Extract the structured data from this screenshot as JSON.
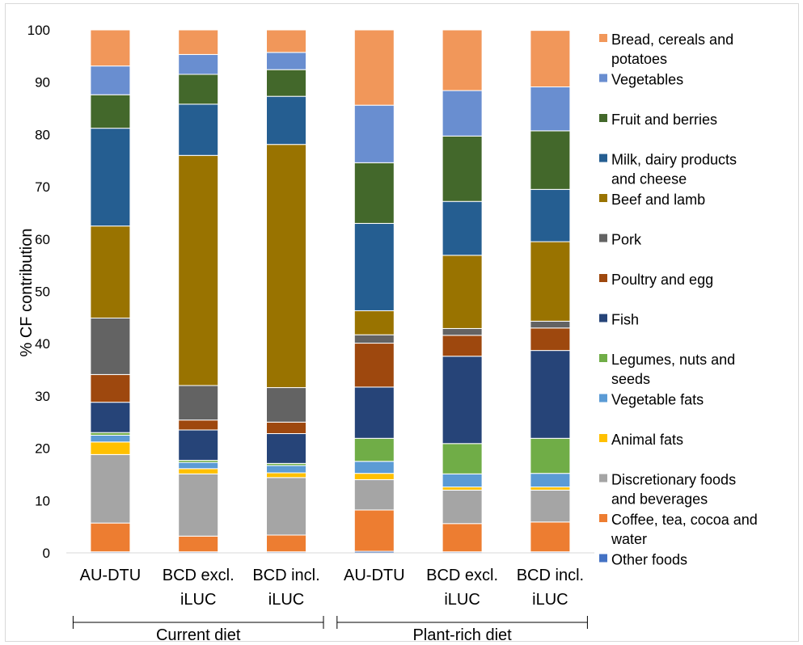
{
  "chart_data": {
    "type": "bar",
    "stacked": true,
    "ylabel": "% CF contribution",
    "ylim": [
      0,
      100
    ],
    "yticks": [
      0,
      10,
      20,
      30,
      40,
      50,
      60,
      70,
      80,
      90,
      100
    ],
    "grid": false,
    "legend_position": "right",
    "categories": [
      {
        "line1": "AU-DTU",
        "line2": ""
      },
      {
        "line1": "BCD excl.",
        "line2": "iLUC"
      },
      {
        "line1": "BCD incl.",
        "line2": "iLUC"
      },
      {
        "line1": "AU-DTU",
        "line2": ""
      },
      {
        "line1": "BCD excl.",
        "line2": "iLUC"
      },
      {
        "line1": "BCD incl.",
        "line2": "iLUC"
      }
    ],
    "groups": [
      {
        "label": "Current diet",
        "from": 0,
        "to": 2
      },
      {
        "label": "Plant-rich diet",
        "from": 3,
        "to": 5
      }
    ],
    "series": [
      {
        "name": "Other foods",
        "color": "#4472c4",
        "values": [
          0.2,
          0.2,
          0.2,
          0.3,
          0.2,
          0.2
        ]
      },
      {
        "name": "Coffee, tea, cocoa and water",
        "color": "#ed7d31",
        "values": [
          5.5,
          3.0,
          3.2,
          7.9,
          5.4,
          5.7
        ]
      },
      {
        "name": "Discretionary foods and beverages",
        "color": "#a5a5a5",
        "values": [
          13.1,
          11.9,
          11.0,
          5.8,
          6.4,
          6.1
        ]
      },
      {
        "name": "Animal fats",
        "color": "#ffc000",
        "values": [
          2.4,
          1.0,
          0.9,
          1.2,
          0.6,
          0.6
        ]
      },
      {
        "name": "Vegetable fats",
        "color": "#5b9bd5",
        "values": [
          1.3,
          1.2,
          1.4,
          2.3,
          2.5,
          2.6
        ]
      },
      {
        "name": "Legumes, nuts and seeds",
        "color": "#70ad47",
        "values": [
          0.5,
          0.4,
          0.4,
          4.4,
          5.8,
          6.7
        ]
      },
      {
        "name": "Fish",
        "color": "#264478",
        "values": [
          5.8,
          5.8,
          5.7,
          9.8,
          16.7,
          16.8
        ]
      },
      {
        "name": "Poultry and egg",
        "color": "#9e480e",
        "values": [
          5.3,
          1.9,
          2.2,
          8.4,
          4.0,
          4.3
        ]
      },
      {
        "name": "Pork",
        "color": "#636363",
        "values": [
          10.8,
          6.6,
          6.6,
          1.6,
          1.3,
          1.3
        ]
      },
      {
        "name": "Beef and lamb",
        "color": "#997300",
        "values": [
          17.6,
          44.0,
          46.5,
          4.6,
          14.0,
          15.2
        ]
      },
      {
        "name": "Milk, dairy products and cheese",
        "color": "#255e91",
        "values": [
          18.7,
          9.8,
          9.2,
          16.7,
          10.3,
          10.0
        ]
      },
      {
        "name": "Fruit and berries",
        "color": "#43682b",
        "values": [
          6.4,
          5.7,
          5.1,
          11.6,
          12.5,
          11.2
        ]
      },
      {
        "name": "Vegetables",
        "color": "#698ed0",
        "values": [
          5.5,
          3.8,
          3.3,
          11.0,
          8.7,
          8.4
        ]
      },
      {
        "name": "Bread, cereals and potatoes",
        "color": "#f1975a",
        "values": [
          6.9,
          4.7,
          4.3,
          14.4,
          11.6,
          10.8
        ]
      }
    ],
    "legend": [
      {
        "line1": "Bread, cereals and",
        "line2": "potatoes",
        "color": "#f1975a"
      },
      {
        "line1": "Vegetables",
        "line2": "",
        "color": "#698ed0"
      },
      {
        "line1": "Fruit and berries",
        "line2": "",
        "color": "#43682b"
      },
      {
        "line1": "Milk, dairy products",
        "line2": "and cheese",
        "color": "#255e91"
      },
      {
        "line1": "Beef and lamb",
        "line2": "",
        "color": "#997300"
      },
      {
        "line1": "Pork",
        "line2": "",
        "color": "#636363"
      },
      {
        "line1": "Poultry and egg",
        "line2": "",
        "color": "#9e480e"
      },
      {
        "line1": "Fish",
        "line2": "",
        "color": "#264478"
      },
      {
        "line1": "Legumes, nuts and",
        "line2": "seeds",
        "color": "#70ad47"
      },
      {
        "line1": "Vegetable fats",
        "line2": "",
        "color": "#5b9bd5"
      },
      {
        "line1": "Animal fats",
        "line2": "",
        "color": "#ffc000"
      },
      {
        "line1": "Discretionary foods",
        "line2": "and beverages",
        "color": "#a5a5a5"
      },
      {
        "line1": "Coffee, tea, cocoa and",
        "line2": "water",
        "color": "#ed7d31"
      },
      {
        "line1": "Other foods",
        "line2": "",
        "color": "#4472c4"
      }
    ]
  }
}
